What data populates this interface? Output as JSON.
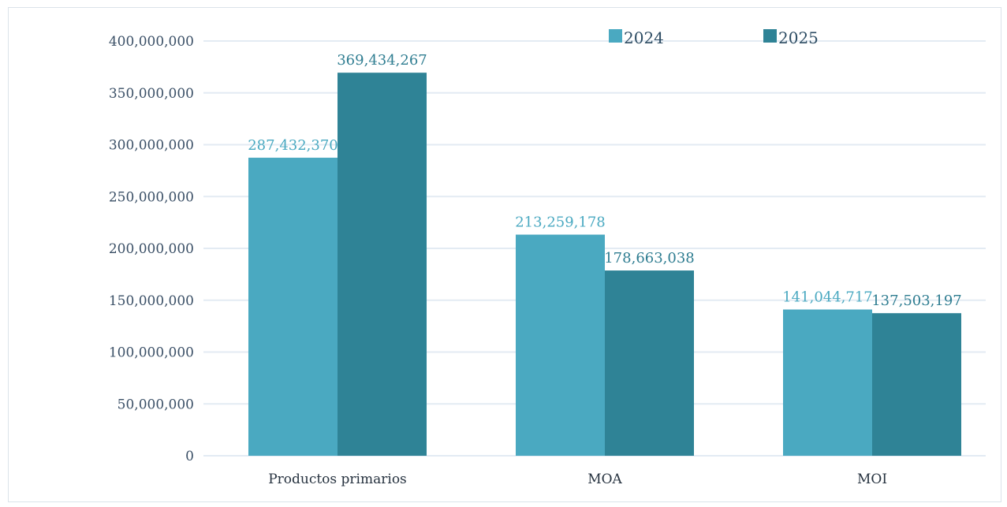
{
  "chart_data": {
    "type": "bar",
    "categories": [
      "Productos primarios",
      "MOA",
      "MOI"
    ],
    "series": [
      {
        "name": "2024",
        "values": [
          287432370,
          213259178,
          141044717
        ],
        "labels": [
          "287,432,370",
          "213,259,178",
          "141,044,717"
        ],
        "color": "#4aa9c1",
        "label_color": "#4aa9c1"
      },
      {
        "name": "2025",
        "values": [
          369434267,
          178663038,
          137503197
        ],
        "labels": [
          "369,434,267",
          "178,663,038",
          "137,503,197"
        ],
        "color": "#2f8396",
        "label_color": "#2f7d91"
      }
    ],
    "ylim": [
      0,
      400000000
    ],
    "yticks": [
      0,
      50000000,
      100000000,
      150000000,
      200000000,
      250000000,
      300000000,
      350000000,
      400000000
    ],
    "ytick_labels": [
      "0",
      "50,000,000",
      "100,000,000",
      "150,000,000",
      "200,000,000",
      "250,000,000",
      "300,000,000",
      "350,000,000",
      "400,000,000"
    ],
    "grid": true,
    "legend": "top-right",
    "gridline_color": "#e3ebf3",
    "title": "",
    "xlabel": "",
    "ylabel": ""
  }
}
